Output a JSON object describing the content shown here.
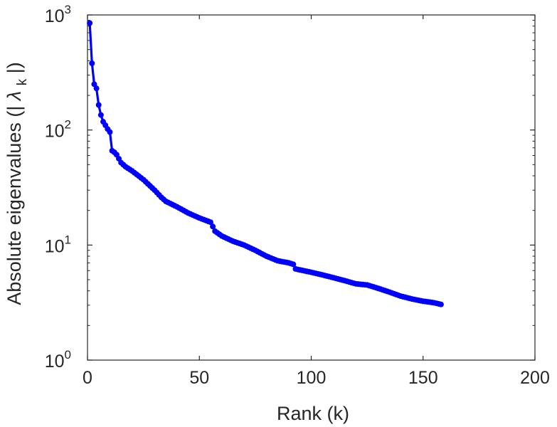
{
  "chart_data": {
    "type": "line",
    "xlabel": "Rank (k)",
    "ylabel_main": "Absolute eigenvalues (|",
    "ylabel_symbol": "λ",
    "ylabel_subscript": "k",
    "ylabel_close": "|)",
    "xlim": [
      0,
      200
    ],
    "ylim": [
      1,
      1000
    ],
    "yscale": "log",
    "grid": false,
    "xticks": [
      {
        "value": 0,
        "label": "0"
      },
      {
        "value": 50,
        "label": "50"
      },
      {
        "value": 100,
        "label": "100"
      },
      {
        "value": 150,
        "label": "150"
      },
      {
        "value": 200,
        "label": "200"
      }
    ],
    "yticks": [
      {
        "value": 1,
        "base": "10",
        "exp": "0"
      },
      {
        "value": 10,
        "base": "10",
        "exp": "1"
      },
      {
        "value": 100,
        "base": "10",
        "exp": "2"
      },
      {
        "value": 1000,
        "base": "10",
        "exp": "3"
      }
    ],
    "series": [
      {
        "color": "#0000ff",
        "keypoints": [
          [
            1,
            850
          ],
          [
            2,
            380
          ],
          [
            3,
            250
          ],
          [
            4,
            230
          ],
          [
            5,
            165
          ],
          [
            6,
            135
          ],
          [
            7,
            118
          ],
          [
            8,
            110
          ],
          [
            9,
            102
          ],
          [
            10,
            96
          ],
          [
            11,
            66
          ],
          [
            12,
            64
          ],
          [
            13,
            61
          ],
          [
            15,
            52
          ],
          [
            17,
            48
          ],
          [
            20,
            44
          ],
          [
            25,
            37
          ],
          [
            30,
            30
          ],
          [
            33,
            26
          ],
          [
            35,
            24
          ],
          [
            40,
            21.5
          ],
          [
            45,
            19
          ],
          [
            50,
            17.2
          ],
          [
            55,
            15.8
          ],
          [
            56,
            14.5
          ],
          [
            57,
            13.2
          ],
          [
            60,
            12
          ],
          [
            65,
            10.8
          ],
          [
            70,
            10
          ],
          [
            75,
            9
          ],
          [
            80,
            8
          ],
          [
            85,
            7.3
          ],
          [
            90,
            7
          ],
          [
            92,
            6.8
          ],
          [
            93,
            6.2
          ],
          [
            100,
            5.8
          ],
          [
            105,
            5.5
          ],
          [
            110,
            5.2
          ],
          [
            115,
            4.9
          ],
          [
            120,
            4.6
          ],
          [
            125,
            4.5
          ],
          [
            130,
            4.2
          ],
          [
            135,
            3.9
          ],
          [
            140,
            3.6
          ],
          [
            145,
            3.4
          ],
          [
            150,
            3.25
          ],
          [
            155,
            3.15
          ],
          [
            158,
            3.05
          ]
        ]
      }
    ]
  }
}
